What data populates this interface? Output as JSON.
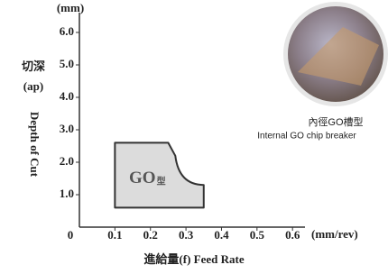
{
  "chart_data": {
    "type": "region",
    "y_unit": "(mm)",
    "x_unit": "(mm/rev)",
    "y_label_zh": "切深",
    "y_label_sym": "(ap)",
    "y_label_en": "Depth of Cut",
    "x_label": "進給量(f) Feed Rate",
    "region_label": "GO",
    "region_label_suffix": "型",
    "photo_caption_zh": "內徑GO槽型",
    "photo_caption_en": "Internal GO chip breaker",
    "series": [
      {
        "name": "GO",
        "color": "#dcdcdc",
        "x": [
          0.1,
          0.25,
          0.27,
          0.35,
          0.35,
          0.1
        ],
        "values": [
          2.6,
          2.6,
          2.2,
          1.3,
          0.6,
          0.6
        ]
      }
    ],
    "xlim": [
      0,
      0.63
    ],
    "ylim": [
      0,
      6.5
    ],
    "xticks": [
      0,
      0.1,
      0.2,
      0.3,
      0.4,
      0.5,
      0.6
    ],
    "yticks": [
      {
        "value": 1,
        "label": "1.0"
      },
      {
        "value": 2,
        "label": "2.0"
      },
      {
        "value": 3,
        "label": "3.0"
      },
      {
        "value": 4,
        "label": "4.0"
      },
      {
        "value": 5,
        "label": "5.0"
      },
      {
        "value": 6,
        "label": "6.0"
      }
    ]
  }
}
